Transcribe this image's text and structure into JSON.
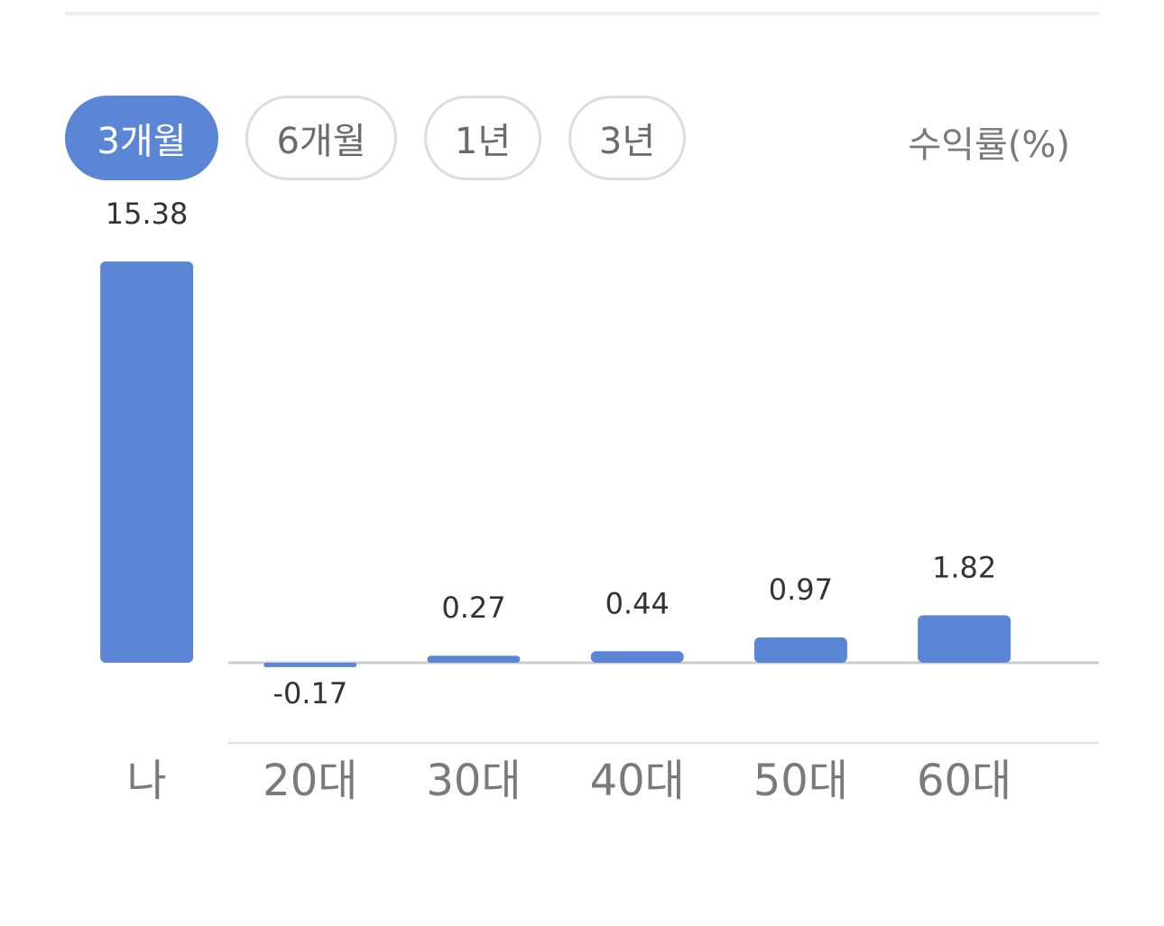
{
  "tabs": [
    {
      "label": "3개월",
      "active": true
    },
    {
      "label": "6개월",
      "active": false
    },
    {
      "label": "1년",
      "active": false
    },
    {
      "label": "3년",
      "active": false
    }
  ],
  "unit_label": "수익률(%)",
  "colors": {
    "bar": "#5b86d6",
    "axis": "#cccccc",
    "text": "#333333",
    "category": "#7a7a7a"
  },
  "chart_data": {
    "type": "bar",
    "categories": [
      "나",
      "20대",
      "30대",
      "40대",
      "50대",
      "60대"
    ],
    "values": [
      15.38,
      -0.17,
      0.27,
      0.44,
      0.97,
      1.82
    ],
    "value_labels": [
      "15.38",
      "-0.17",
      "0.27",
      "0.44",
      "0.97",
      "1.82"
    ],
    "title": "",
    "xlabel": "",
    "ylabel": "수익률(%)",
    "ylim": [
      -0.5,
      15.38
    ],
    "grid": false
  }
}
